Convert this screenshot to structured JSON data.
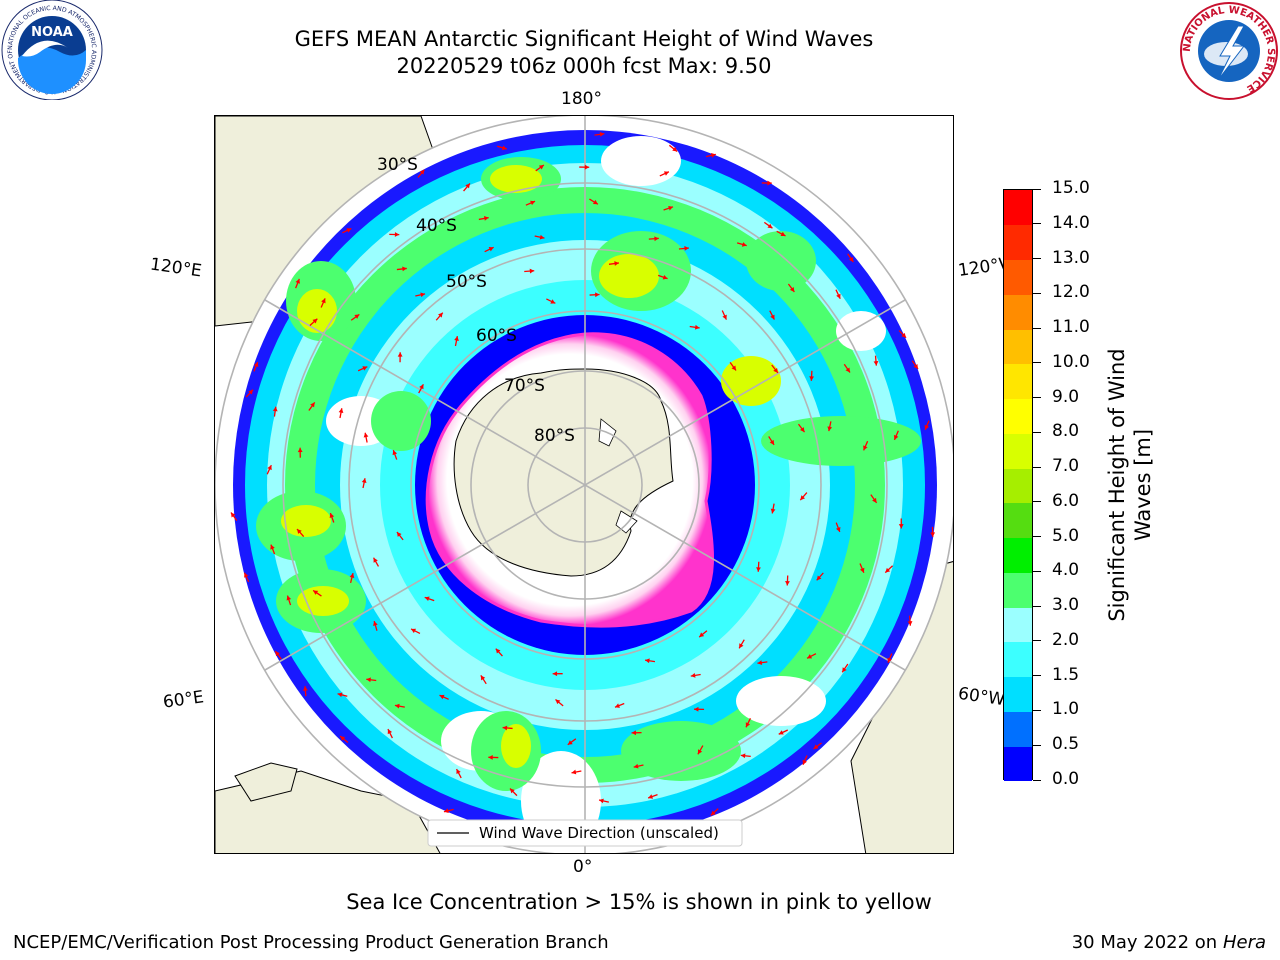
{
  "header": {
    "title_line1": "GEFS MEAN Antarctic Significant Height of Wind Waves",
    "title_line2": "20220529 t06z 000h fcst   Max: 9.50"
  },
  "logos": {
    "noaa_text": "NOAA",
    "noaa_ring_text": "NATIONAL OCEANIC AND ATMOSPHERIC ADMINISTRATION · U.S. DEPARTMENT OF COMMERCE",
    "nws_ring_text": "NATIONAL WEATHER SERVICE"
  },
  "map": {
    "projection": "south-polar-stereographic",
    "lon_labels": {
      "top": "180°",
      "bottom": "0°",
      "upper_left": "120°E",
      "upper_right": "120°W",
      "lower_left": "60°E",
      "lower_right": "60°W"
    },
    "lat_labels": [
      "30°S",
      "40°S",
      "50°S",
      "60°S",
      "70°S",
      "80°S"
    ],
    "legend_label": "Wind Wave Direction (unscaled)",
    "colors": {
      "land": "#efefdb",
      "ocean_background": "#ffffff",
      "arrow": "#ff0000",
      "grid": "#b4b4b4",
      "ice_edge": "#ff33cc"
    }
  },
  "colorbar": {
    "label": "Significant Height of Wind Waves [m]",
    "title_line1": "Significant Height of Wind",
    "title_line2": "Waves [m]",
    "tick_labels": [
      "0.0",
      "0.5",
      "1.0",
      "1.5",
      "2.0",
      "3.0",
      "4.0",
      "5.0",
      "6.0",
      "7.0",
      "8.0",
      "9.0",
      "10.0",
      "11.0",
      "12.0",
      "13.0",
      "14.0",
      "15.0"
    ],
    "colors": [
      "#0000ff",
      "#0070ff",
      "#00dfff",
      "#3cffff",
      "#9bffff",
      "#4cff6f",
      "#00ef00",
      "#55dd11",
      "#a6ee00",
      "#d8ff00",
      "#ffff00",
      "#ffe600",
      "#ffbf00",
      "#ff8c00",
      "#ff5a00",
      "#ff2a00",
      "#ff0000"
    ]
  },
  "subtitle": "Sea Ice Concentration > 15% is shown in pink to yellow",
  "footer": {
    "left": "NCEP/EMC/Verification Post Processing Product Generation Branch",
    "right_date": "30 May 2022 on",
    "right_machine": "Hera"
  }
}
